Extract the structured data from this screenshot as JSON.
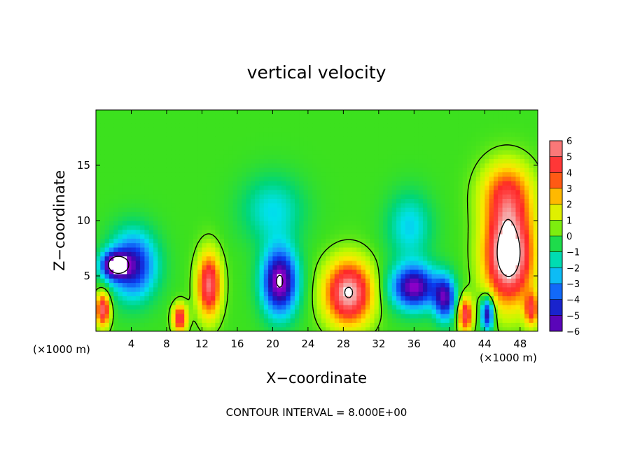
{
  "chart_data": {
    "type": "heatmap",
    "title": "vertical velocity",
    "xlabel": "X−coordinate",
    "ylabel": "Z−coordinate",
    "x_unit_left": "(×1000 m)",
    "x_unit_right": "(×1000 m)",
    "xlim": [
      0,
      50
    ],
    "ylim": [
      0,
      20
    ],
    "x_ticks": [
      4,
      8,
      12,
      16,
      20,
      24,
      28,
      32,
      36,
      40,
      44,
      48
    ],
    "y_ticks": [
      5,
      10,
      15
    ],
    "colorbar": {
      "ticks": [
        "6",
        "5",
        "4",
        "3",
        "2",
        "1",
        "0",
        "−1",
        "−2",
        "−3",
        "−4",
        "−5",
        "−6"
      ],
      "colors": [
        "#f4a8a8",
        "#ff3b3b",
        "#ff1e1e",
        "#ff8c00",
        "#ffe000",
        "#c8ff00",
        "#20e000",
        "#00d870",
        "#00e8e8",
        "#1aa0ff",
        "#0a3cf0",
        "#1a10b0",
        "#8c00c8"
      ]
    },
    "contour_interval_text": "CONTOUR INTERVAL = 8.000E+00",
    "cells": [
      {
        "x": 2.0,
        "z": 6.0,
        "sx": 1.5,
        "sz": 1.2,
        "a": -5.5
      },
      {
        "x": 0.8,
        "z": 2.0,
        "sx": 0.8,
        "sz": 1.5,
        "a": 5.5
      },
      {
        "x": 4.2,
        "z": 6.0,
        "sx": 2.6,
        "sz": 3.0,
        "a": -5.0
      },
      {
        "x": 9.5,
        "z": 1.2,
        "sx": 0.8,
        "sz": 1.2,
        "a": 5.0
      },
      {
        "x": 12.8,
        "z": 4.2,
        "sx": 1.3,
        "sz": 2.8,
        "a": 5.5
      },
      {
        "x": 20.8,
        "z": 4.5,
        "sx": 2.0,
        "sz": 3.0,
        "a": -6.5
      },
      {
        "x": 20.0,
        "z": 11.0,
        "sx": 3.5,
        "sz": 3.0,
        "a": -2.0
      },
      {
        "x": 28.6,
        "z": 3.5,
        "sx": 2.6,
        "sz": 2.8,
        "a": 6.5
      },
      {
        "x": 36.0,
        "z": 4.0,
        "sx": 2.6,
        "sz": 2.0,
        "a": -6.0
      },
      {
        "x": 35.5,
        "z": 9.5,
        "sx": 2.5,
        "sz": 3.0,
        "a": -2.2
      },
      {
        "x": 39.5,
        "z": 3.0,
        "sx": 1.2,
        "sz": 2.0,
        "a": -5.0
      },
      {
        "x": 41.8,
        "z": 1.5,
        "sx": 0.8,
        "sz": 1.5,
        "a": 5.0
      },
      {
        "x": 44.3,
        "z": 1.6,
        "sx": 0.7,
        "sz": 1.5,
        "a": -5.5
      },
      {
        "x": 46.7,
        "z": 7.0,
        "sx": 2.6,
        "sz": 4.2,
        "a": 8.0
      },
      {
        "x": 46.5,
        "z": 12.5,
        "sx": 2.8,
        "sz": 2.8,
        "a": 3.5
      },
      {
        "x": 49.3,
        "z": 2.0,
        "sx": 0.8,
        "sz": 1.5,
        "a": 4.0
      }
    ]
  }
}
